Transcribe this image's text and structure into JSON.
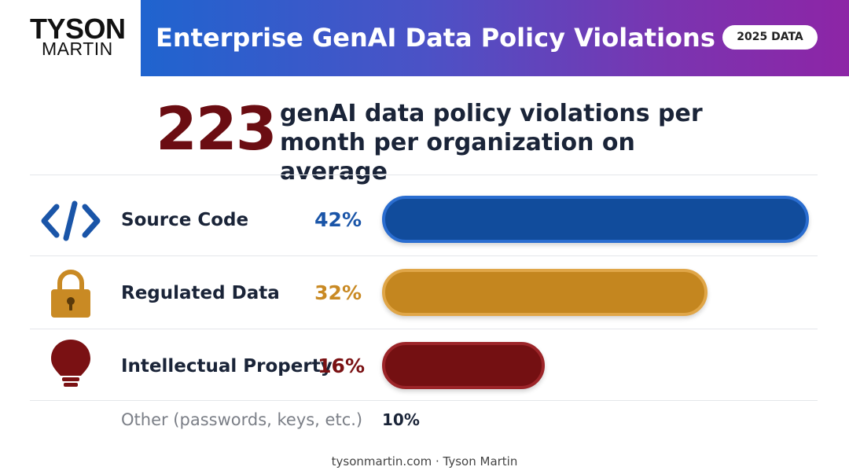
{
  "brand": {
    "logo_top": "TYSON",
    "logo_bottom": "MARTIN"
  },
  "header": {
    "title": "Enterprise GenAI Data Policy Violations",
    "badge": "2025 DATA"
  },
  "headline": {
    "value": "223",
    "text": "genAI data policy violations per month per organization on average"
  },
  "footer": {
    "text": "tysonmartin.com · Tyson Martin"
  },
  "colors": {
    "blue": "#1a55a8",
    "gold": "#c98a24",
    "darkred": "#7a1113",
    "navy": "#1a2438"
  },
  "chart_data": {
    "type": "bar",
    "orientation": "horizontal",
    "unit": "%",
    "categories": [
      "Source Code",
      "Regulated Data",
      "Intellectual Property",
      "Other (passwords, keys, etc.)"
    ],
    "values": [
      42,
      32,
      16,
      10
    ],
    "labels": [
      "42%",
      "32%",
      "16%",
      "10%"
    ],
    "icons": [
      "code-icon",
      "lock-icon",
      "lightbulb-icon",
      null
    ],
    "bar_colors": [
      "#1a55a8",
      "#c98a24",
      "#7a1113",
      null
    ]
  }
}
